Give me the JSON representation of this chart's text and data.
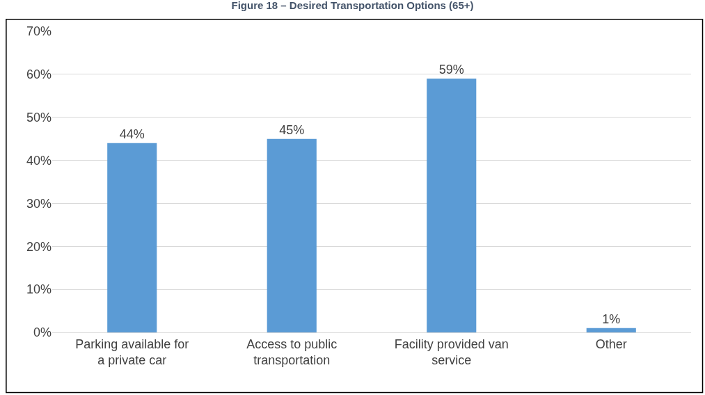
{
  "chart_data": {
    "type": "bar",
    "title": "Figure 18 – Desired Transportation Options (65+)",
    "categories": [
      "Parking available for\na private car",
      "Access to public\ntransportation",
      "Facility provided van\nservice",
      "Other"
    ],
    "values": [
      44,
      45,
      59,
      1
    ],
    "color": "#5b9bd5",
    "ylim": [
      0,
      70
    ],
    "yticks": [
      {
        "value": 0,
        "label": "0%"
      },
      {
        "value": 10,
        "label": "10%"
      },
      {
        "value": 20,
        "label": "20%"
      },
      {
        "value": 30,
        "label": "30%"
      },
      {
        "value": 40,
        "label": "40%"
      },
      {
        "value": 50,
        "label": "50%"
      },
      {
        "value": 60,
        "label": "60%"
      },
      {
        "value": 70,
        "label": "70%"
      }
    ],
    "value_labels": [
      "44%",
      "45%",
      "59%",
      "1%"
    ],
    "grid": "y"
  }
}
